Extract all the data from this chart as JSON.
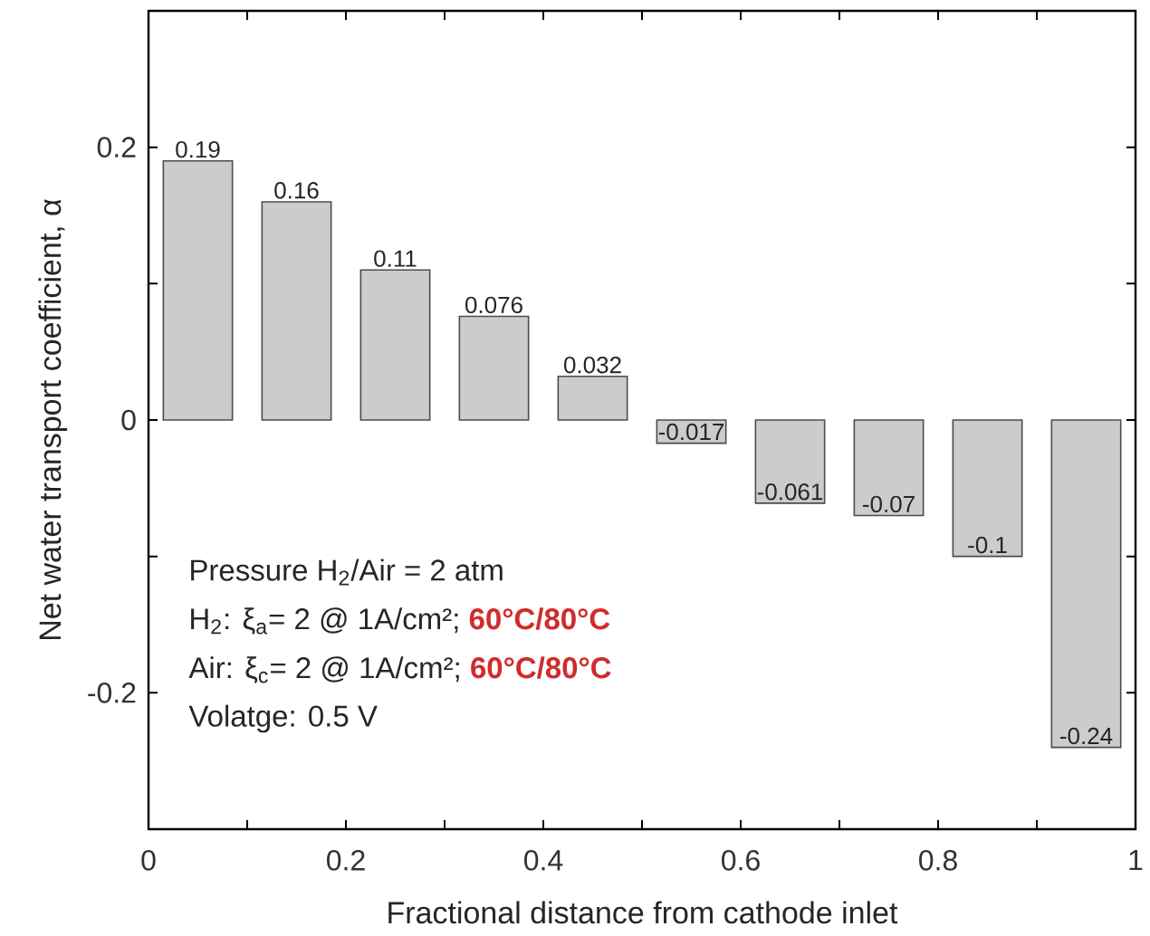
{
  "chart_data": {
    "type": "bar",
    "xlabel": "Fractional distance from cathode inlet",
    "ylabel": "Net water transport coefficient, α",
    "x": [
      0.05,
      0.15,
      0.25,
      0.35,
      0.45,
      0.55,
      0.65,
      0.75,
      0.85,
      0.95
    ],
    "values": [
      0.19,
      0.16,
      0.11,
      0.076,
      0.032,
      -0.017,
      -0.061,
      -0.07,
      -0.1,
      -0.24
    ],
    "color": "#cccccc",
    "data_labels": true,
    "xlim": [
      0,
      1
    ],
    "ylim": [
      -0.3,
      0.3
    ],
    "xticks": [
      0,
      {
        "value": 0.1,
        "label": null
      },
      0.2,
      {
        "value": 0.3,
        "label": null
      },
      0.4,
      {
        "value": 0.5,
        "label": null
      },
      0.6,
      {
        "value": 0.7,
        "label": null
      },
      0.8,
      {
        "value": 0.9,
        "label": null
      },
      1
    ],
    "yticks": [
      {
        "value": -0.2,
        "label": "-0.2"
      },
      {
        "value": -0.1,
        "label": null
      },
      0,
      {
        "value": 0.1,
        "label": null
      },
      0.2
    ],
    "annotations": [
      "Pressure H$_{2}$/Air = 2  atm",
      "H$_{2}$:  ξ$_{a}$= 2 @ 1A/cm²; ",
      "60°C/80°C",
      "Air: ξ$_{c}$= 2 @ 1A/cm²; ",
      "60°C/80°C",
      "Volatge: 0.5 V"
    ]
  }
}
